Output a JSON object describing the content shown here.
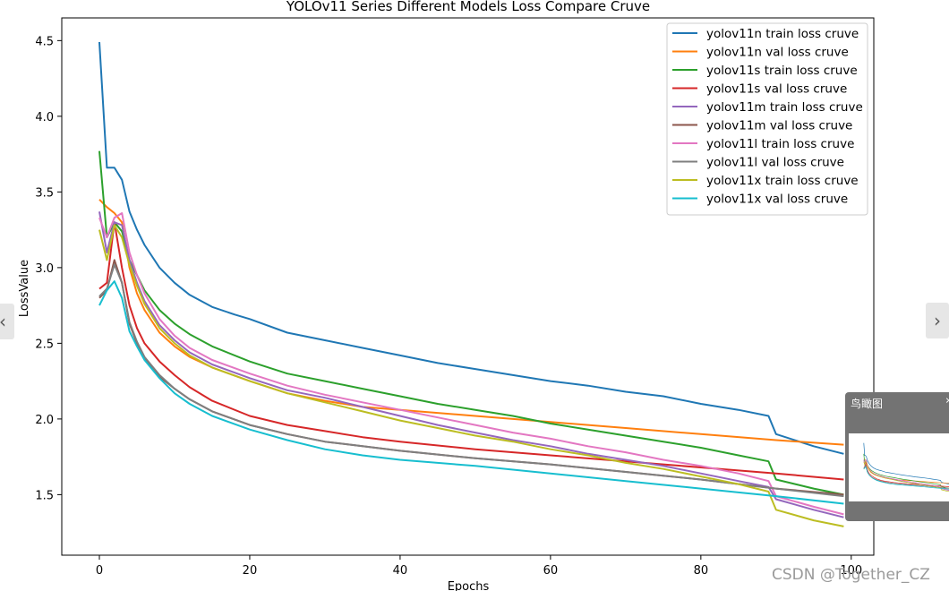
{
  "chart_data": {
    "type": "line",
    "title": "YOLOv11 Series Different Models Loss Compare Cruve",
    "xlabel": "Epochs",
    "ylabel": "LossValue",
    "xlim": [
      -5,
      103
    ],
    "ylim": [
      1.1,
      4.65
    ],
    "xticks": [
      0,
      20,
      40,
      60,
      80,
      100
    ],
    "yticks": [
      1.5,
      2.0,
      2.5,
      3.0,
      3.5,
      4.0,
      4.5
    ],
    "ytick_labels": [
      "1.5",
      "2.0",
      "2.5",
      "3.0",
      "3.5",
      "4.0",
      "4.5"
    ],
    "legend_position": "top-right",
    "grid": false,
    "series": [
      {
        "name": "yolov11n train loss cruve",
        "color": "#1f77b4",
        "points": [
          [
            0,
            4.49
          ],
          [
            1,
            3.66
          ],
          [
            2,
            3.66
          ],
          [
            3,
            3.58
          ],
          [
            4,
            3.37
          ],
          [
            5,
            3.25
          ],
          [
            6,
            3.15
          ],
          [
            8,
            3.0
          ],
          [
            10,
            2.9
          ],
          [
            12,
            2.82
          ],
          [
            15,
            2.74
          ],
          [
            18,
            2.69
          ],
          [
            20,
            2.66
          ],
          [
            25,
            2.57
          ],
          [
            30,
            2.52
          ],
          [
            35,
            2.47
          ],
          [
            40,
            2.42
          ],
          [
            45,
            2.37
          ],
          [
            50,
            2.33
          ],
          [
            55,
            2.29
          ],
          [
            60,
            2.25
          ],
          [
            65,
            2.22
          ],
          [
            70,
            2.18
          ],
          [
            75,
            2.15
          ],
          [
            80,
            2.1
          ],
          [
            85,
            2.06
          ],
          [
            89,
            2.02
          ],
          [
            90,
            1.9
          ],
          [
            95,
            1.82
          ],
          [
            99,
            1.77
          ]
        ]
      },
      {
        "name": "yolov11n val loss cruve",
        "color": "#ff7f0e",
        "points": [
          [
            0,
            3.45
          ],
          [
            1,
            3.4
          ],
          [
            2,
            3.36
          ],
          [
            3,
            3.3
          ],
          [
            4,
            3.0
          ],
          [
            5,
            2.83
          ],
          [
            6,
            2.72
          ],
          [
            8,
            2.57
          ],
          [
            10,
            2.48
          ],
          [
            12,
            2.41
          ],
          [
            15,
            2.34
          ],
          [
            20,
            2.25
          ],
          [
            25,
            2.17
          ],
          [
            30,
            2.12
          ],
          [
            35,
            2.08
          ],
          [
            40,
            2.06
          ],
          [
            50,
            2.02
          ],
          [
            60,
            1.98
          ],
          [
            70,
            1.94
          ],
          [
            80,
            1.9
          ],
          [
            90,
            1.86
          ],
          [
            99,
            1.83
          ]
        ]
      },
      {
        "name": "yolov11s train loss cruve",
        "color": "#2ca02c",
        "points": [
          [
            0,
            3.77
          ],
          [
            1,
            3.2
          ],
          [
            2,
            3.3
          ],
          [
            3,
            3.24
          ],
          [
            4,
            3.05
          ],
          [
            5,
            2.95
          ],
          [
            6,
            2.85
          ],
          [
            8,
            2.72
          ],
          [
            10,
            2.63
          ],
          [
            12,
            2.56
          ],
          [
            15,
            2.48
          ],
          [
            20,
            2.38
          ],
          [
            25,
            2.3
          ],
          [
            30,
            2.25
          ],
          [
            35,
            2.2
          ],
          [
            40,
            2.15
          ],
          [
            45,
            2.1
          ],
          [
            50,
            2.06
          ],
          [
            55,
            2.02
          ],
          [
            60,
            1.97
          ],
          [
            65,
            1.93
          ],
          [
            70,
            1.89
          ],
          [
            75,
            1.85
          ],
          [
            80,
            1.81
          ],
          [
            85,
            1.76
          ],
          [
            89,
            1.72
          ],
          [
            90,
            1.6
          ],
          [
            95,
            1.54
          ],
          [
            99,
            1.5
          ]
        ]
      },
      {
        "name": "yolov11s val loss cruve",
        "color": "#d62728",
        "points": [
          [
            0,
            2.86
          ],
          [
            1,
            2.9
          ],
          [
            2,
            3.3
          ],
          [
            3,
            3.0
          ],
          [
            4,
            2.75
          ],
          [
            5,
            2.6
          ],
          [
            6,
            2.5
          ],
          [
            8,
            2.38
          ],
          [
            10,
            2.29
          ],
          [
            12,
            2.21
          ],
          [
            15,
            2.12
          ],
          [
            20,
            2.02
          ],
          [
            25,
            1.96
          ],
          [
            30,
            1.92
          ],
          [
            35,
            1.88
          ],
          [
            40,
            1.85
          ],
          [
            50,
            1.8
          ],
          [
            60,
            1.76
          ],
          [
            70,
            1.72
          ],
          [
            80,
            1.68
          ],
          [
            90,
            1.64
          ],
          [
            99,
            1.6
          ]
        ]
      },
      {
        "name": "yolov11m train loss cruve",
        "color": "#9467bd",
        "points": [
          [
            0,
            3.37
          ],
          [
            1,
            3.1
          ],
          [
            2,
            3.3
          ],
          [
            3,
            3.28
          ],
          [
            4,
            3.05
          ],
          [
            5,
            2.9
          ],
          [
            6,
            2.78
          ],
          [
            8,
            2.62
          ],
          [
            10,
            2.52
          ],
          [
            12,
            2.44
          ],
          [
            15,
            2.36
          ],
          [
            20,
            2.27
          ],
          [
            25,
            2.19
          ],
          [
            30,
            2.14
          ],
          [
            35,
            2.08
          ],
          [
            40,
            2.02
          ],
          [
            45,
            1.96
          ],
          [
            50,
            1.91
          ],
          [
            55,
            1.86
          ],
          [
            60,
            1.82
          ],
          [
            65,
            1.77
          ],
          [
            70,
            1.73
          ],
          [
            75,
            1.69
          ],
          [
            80,
            1.64
          ],
          [
            85,
            1.59
          ],
          [
            89,
            1.55
          ],
          [
            90,
            1.47
          ],
          [
            95,
            1.4
          ],
          [
            99,
            1.35
          ]
        ]
      },
      {
        "name": "yolov11m val loss cruve",
        "color": "#8c564b",
        "points": [
          [
            0,
            2.8
          ],
          [
            1,
            2.85
          ],
          [
            2,
            3.05
          ],
          [
            3,
            2.9
          ],
          [
            4,
            2.63
          ],
          [
            5,
            2.5
          ],
          [
            6,
            2.4
          ],
          [
            8,
            2.28
          ],
          [
            10,
            2.2
          ],
          [
            12,
            2.13
          ],
          [
            15,
            2.05
          ],
          [
            20,
            1.96
          ],
          [
            25,
            1.9
          ],
          [
            30,
            1.85
          ],
          [
            35,
            1.82
          ],
          [
            40,
            1.79
          ],
          [
            50,
            1.74
          ],
          [
            60,
            1.7
          ],
          [
            70,
            1.65
          ],
          [
            80,
            1.6
          ],
          [
            90,
            1.54
          ],
          [
            99,
            1.5
          ]
        ]
      },
      {
        "name": "yolov11l train loss cruve",
        "color": "#e377c2",
        "points": [
          [
            0,
            3.33
          ],
          [
            1,
            3.2
          ],
          [
            2,
            3.33
          ],
          [
            3,
            3.36
          ],
          [
            4,
            3.1
          ],
          [
            5,
            2.95
          ],
          [
            6,
            2.83
          ],
          [
            8,
            2.66
          ],
          [
            10,
            2.55
          ],
          [
            12,
            2.47
          ],
          [
            15,
            2.39
          ],
          [
            20,
            2.3
          ],
          [
            25,
            2.22
          ],
          [
            30,
            2.16
          ],
          [
            35,
            2.11
          ],
          [
            40,
            2.06
          ],
          [
            45,
            2.01
          ],
          [
            50,
            1.96
          ],
          [
            55,
            1.91
          ],
          [
            60,
            1.87
          ],
          [
            65,
            1.82
          ],
          [
            70,
            1.78
          ],
          [
            75,
            1.73
          ],
          [
            80,
            1.69
          ],
          [
            85,
            1.64
          ],
          [
            89,
            1.59
          ],
          [
            90,
            1.49
          ],
          [
            95,
            1.42
          ],
          [
            99,
            1.37
          ]
        ]
      },
      {
        "name": "yolov11l val loss cruve",
        "color": "#7f7f7f",
        "points": [
          [
            0,
            2.81
          ],
          [
            1,
            2.86
          ],
          [
            2,
            3.02
          ],
          [
            3,
            2.9
          ],
          [
            4,
            2.64
          ],
          [
            5,
            2.51
          ],
          [
            6,
            2.41
          ],
          [
            8,
            2.29
          ],
          [
            10,
            2.2
          ],
          [
            12,
            2.13
          ],
          [
            15,
            2.05
          ],
          [
            20,
            1.96
          ],
          [
            25,
            1.9
          ],
          [
            30,
            1.85
          ],
          [
            35,
            1.82
          ],
          [
            40,
            1.79
          ],
          [
            50,
            1.74
          ],
          [
            60,
            1.7
          ],
          [
            70,
            1.65
          ],
          [
            80,
            1.6
          ],
          [
            90,
            1.54
          ],
          [
            99,
            1.49
          ]
        ]
      },
      {
        "name": "yolov11x train loss cruve",
        "color": "#bcbd22",
        "points": [
          [
            0,
            3.25
          ],
          [
            1,
            3.05
          ],
          [
            2,
            3.28
          ],
          [
            3,
            3.2
          ],
          [
            4,
            3.02
          ],
          [
            5,
            2.88
          ],
          [
            6,
            2.76
          ],
          [
            8,
            2.6
          ],
          [
            10,
            2.5
          ],
          [
            12,
            2.42
          ],
          [
            15,
            2.34
          ],
          [
            20,
            2.25
          ],
          [
            25,
            2.17
          ],
          [
            30,
            2.11
          ],
          [
            35,
            2.05
          ],
          [
            40,
            1.99
          ],
          [
            45,
            1.94
          ],
          [
            50,
            1.89
          ],
          [
            55,
            1.85
          ],
          [
            60,
            1.8
          ],
          [
            65,
            1.76
          ],
          [
            70,
            1.71
          ],
          [
            75,
            1.67
          ],
          [
            80,
            1.62
          ],
          [
            85,
            1.57
          ],
          [
            89,
            1.52
          ],
          [
            90,
            1.4
          ],
          [
            95,
            1.33
          ],
          [
            99,
            1.29
          ]
        ]
      },
      {
        "name": "yolov11x val loss cruve",
        "color": "#17becf",
        "points": [
          [
            0,
            2.75
          ],
          [
            1,
            2.85
          ],
          [
            2,
            2.91
          ],
          [
            3,
            2.8
          ],
          [
            4,
            2.58
          ],
          [
            5,
            2.48
          ],
          [
            6,
            2.39
          ],
          [
            8,
            2.27
          ],
          [
            10,
            2.17
          ],
          [
            12,
            2.1
          ],
          [
            15,
            2.02
          ],
          [
            20,
            1.93
          ],
          [
            25,
            1.86
          ],
          [
            30,
            1.8
          ],
          [
            35,
            1.76
          ],
          [
            40,
            1.73
          ],
          [
            50,
            1.69
          ],
          [
            60,
            1.64
          ],
          [
            70,
            1.59
          ],
          [
            80,
            1.54
          ],
          [
            90,
            1.49
          ],
          [
            99,
            1.44
          ]
        ]
      }
    ]
  },
  "overlay": {
    "birdseye_title": "鸟瞰图",
    "birdseye_close": "›",
    "watermark": "CSDN @Together_CZ",
    "nav_prev": "‹",
    "nav_next": "›"
  }
}
